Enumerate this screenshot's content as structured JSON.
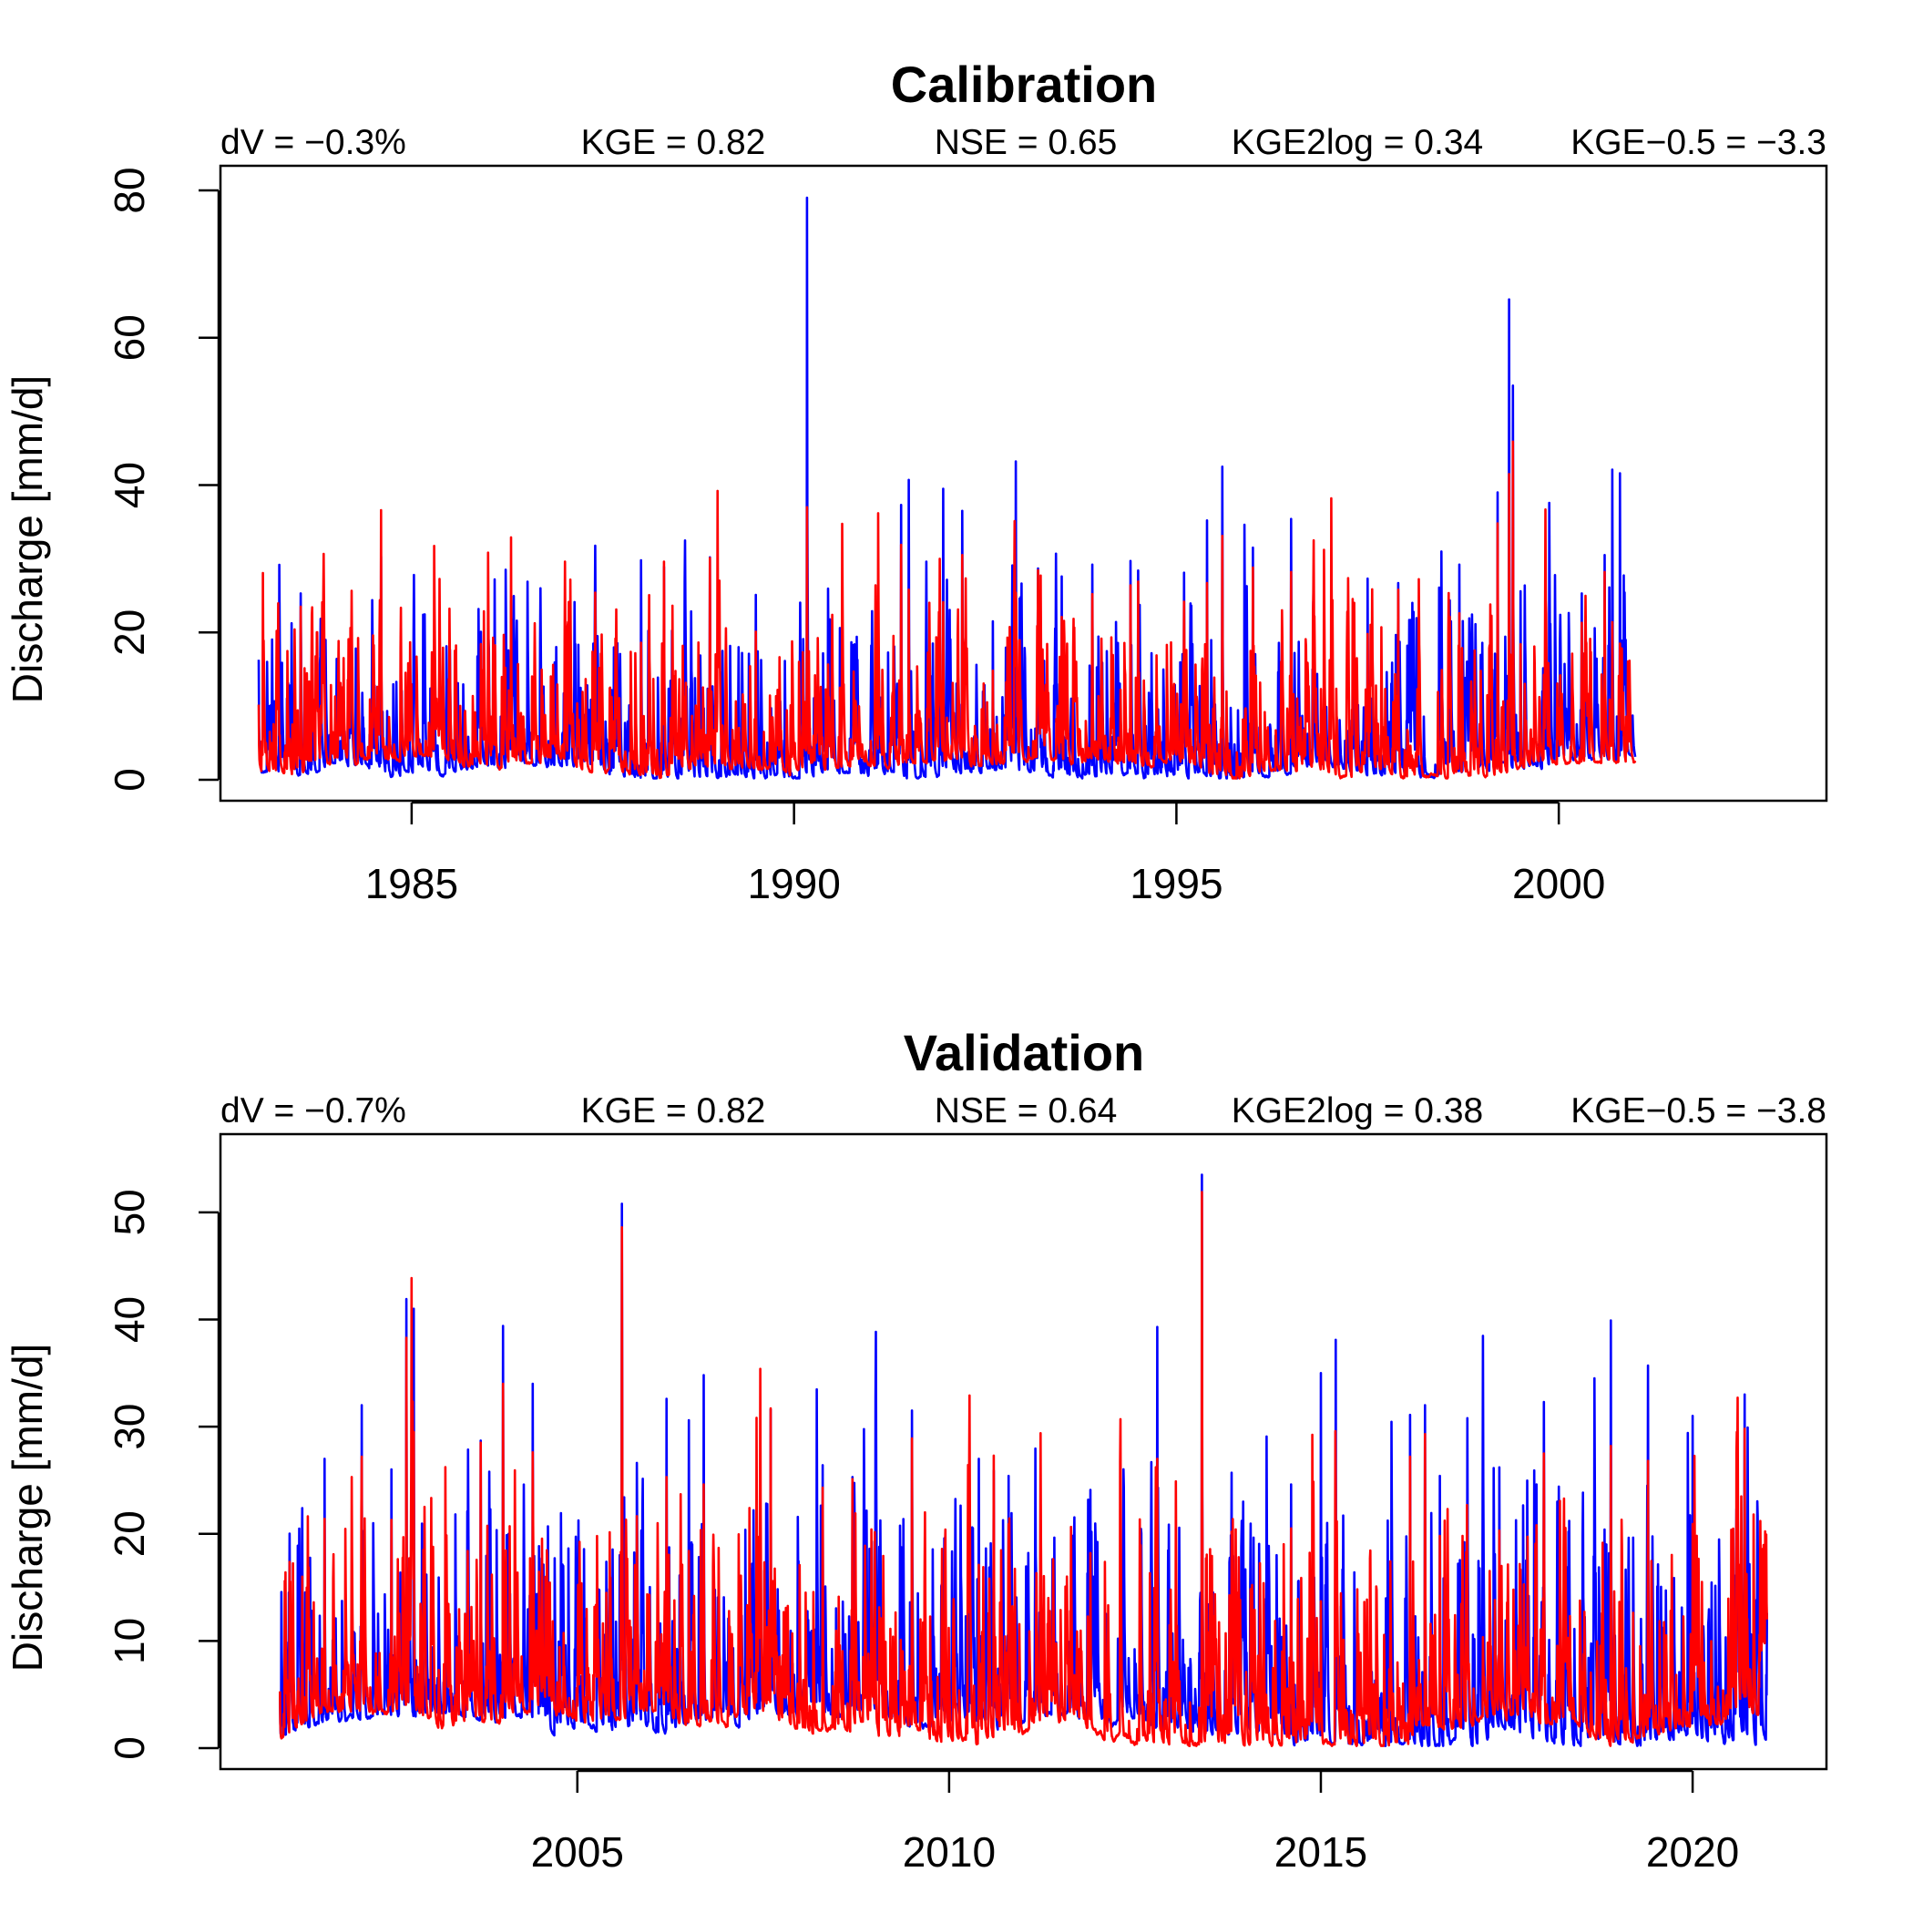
{
  "chart_data": [
    {
      "type": "line",
      "title": "Calibration",
      "metrics": [
        "dV = −0.3%",
        "KGE = 0.82",
        "NSE = 0.65",
        "KGE2log = 0.34",
        "KGE−0.5 = −3.3"
      ],
      "xlabel": "",
      "ylabel": "Discharge [mm/d]",
      "xlim": [
        1982.5,
        2003.5
      ],
      "ylim": [
        0,
        80
      ],
      "x_ticks": [
        1985,
        1990,
        1995,
        2000
      ],
      "y_ticks": [
        0,
        20,
        40,
        60,
        80
      ],
      "data_range": [
        1983.0,
        2001.0
      ],
      "series": [
        {
          "color": "#0000ff",
          "x": [
            1983.0,
            1983.55,
            1984.6,
            1986.3,
            1987.4,
            1988.0,
            1988.3,
            1988.9,
            1989.5,
            1990.17,
            1990.6,
            1991.4,
            1991.5,
            1991.95,
            1992.2,
            1992.6,
            1992.9,
            1993.5,
            1993.9,
            1994.4,
            1994.5,
            1995.1,
            1995.4,
            1995.6,
            1996.0,
            1996.5,
            1997.5,
            1997.9,
            1998.7,
            1999.2,
            1999.35,
            1999.4,
            1999.5,
            2000.3,
            2000.6,
            2000.7,
            2000.8,
            2001.0
          ],
          "peaks": [
            16.3,
            25.3,
            30.3,
            24.3,
            29.2,
            29.8,
            28.9,
            30.2,
            25.1,
            79.0,
            20.6,
            37.3,
            40.7,
            39.5,
            36.5,
            21.5,
            43.2,
            27.6,
            29.2,
            29.7,
            28.4,
            28.1,
            35.2,
            42.5,
            31.5,
            35.4,
            27.3,
            26.7,
            29.2,
            39.0,
            65.2,
            53.5,
            25.6,
            25.3,
            30.5,
            42.1,
            41.6,
            1.0
          ]
        },
        {
          "color": "#ff0000",
          "x": [
            1983.0,
            1983.55,
            1984.6,
            1986.3,
            1987.4,
            1988.0,
            1988.3,
            1988.9,
            1989.5,
            1990.17,
            1990.6,
            1991.4,
            1991.5,
            1991.95,
            1992.2,
            1992.6,
            1992.9,
            1993.5,
            1993.9,
            1994.4,
            1994.5,
            1995.1,
            1995.4,
            1995.6,
            1996.0,
            1996.5,
            1997.5,
            1997.9,
            1998.7,
            1999.2,
            1999.35,
            1999.4,
            1999.5,
            2000.3,
            2000.6,
            2000.7,
            2000.8,
            2001.0
          ],
          "peaks": [
            10.2,
            23.5,
            36.6,
            32.9,
            25.4,
            18.6,
            29.6,
            30.1,
            20.1,
            37.0,
            12.5,
            31.9,
            25.8,
            24.1,
            30.5,
            14.8,
            25.4,
            22.1,
            25.2,
            26.4,
            26.9,
            23.4,
            26.7,
            33.1,
            28.8,
            28.2,
            19.8,
            25.8,
            22.6,
            34.8,
            41.5,
            45.9,
            18.4,
            21.3,
            28.2,
            21.4,
            18.5,
            0.6
          ]
        }
      ]
    },
    {
      "type": "line",
      "title": "Validation",
      "metrics": [
        "dV = −0.7%",
        "KGE = 0.82",
        "NSE = 0.64",
        "KGE2log = 0.38",
        "KGE−0.5 = −3.8"
      ],
      "xlabel": "",
      "ylabel": "Discharge [mm/d]",
      "xlim": [
        2000.2,
        2021.8
      ],
      "ylim": [
        0,
        55
      ],
      "x_ticks": [
        2005,
        2010,
        2015,
        2020
      ],
      "y_ticks": [
        0,
        10,
        20,
        30,
        40,
        50
      ],
      "data_range": [
        2001.0,
        2021.0
      ],
      "series": [
        {
          "color": "#0000ff",
          "x": [
            2001.0,
            2001.3,
            2001.6,
            2002.1,
            2002.5,
            2002.7,
            2002.8,
            2003.7,
            2004.0,
            2004.4,
            2005.6,
            2006.2,
            2006.5,
            2006.7,
            2007.6,
            2008.3,
            2008.7,
            2009.5,
            2010.4,
            2010.6,
            2010.8,
            2011.9,
            2012.8,
            2013.4,
            2013.8,
            2014.6,
            2015.0,
            2015.2,
            2016.2,
            2016.4,
            2016.6,
            2017.4,
            2017.9,
            2018.0,
            2018.9,
            2019.4,
            2020.0,
            2020.7,
            2021.0
          ],
          "peaks": [
            5.0,
            22.4,
            27.0,
            32.0,
            26.0,
            41.9,
            41.0,
            28.7,
            39.4,
            34.0,
            50.8,
            32.6,
            30.6,
            34.8,
            31.6,
            26.4,
            25.3,
            31.5,
            27.0,
            25.9,
            25.4,
            24.1,
            39.3,
            53.5,
            25.7,
            24.6,
            35.0,
            38.1,
            31.1,
            32.0,
            25.4,
            26.2,
            24.6,
            32.3,
            39.9,
            35.7,
            31.0,
            33.0,
            12.6
          ]
        },
        {
          "color": "#ff0000",
          "x": [
            2001.0,
            2001.3,
            2001.6,
            2002.1,
            2002.5,
            2002.7,
            2002.8,
            2003.7,
            2004.0,
            2004.4,
            2005.6,
            2006.2,
            2006.5,
            2006.7,
            2007.6,
            2008.3,
            2008.7,
            2009.5,
            2010.4,
            2010.6,
            2010.8,
            2011.9,
            2012.8,
            2013.4,
            2013.8,
            2014.6,
            2015.0,
            2015.2,
            2016.2,
            2016.4,
            2016.6,
            2017.4,
            2017.9,
            2018.0,
            2018.9,
            2019.4,
            2020.0,
            2020.7,
            2021.0
          ],
          "peaks": [
            5.3,
            16.0,
            21.4,
            27.2,
            21.3,
            38.3,
            29.5,
            28.5,
            34.0,
            27.6,
            48.6,
            25.3,
            18.4,
            24.6,
            31.7,
            24.3,
            25.1,
            28.9,
            17.1,
            27.3,
            20.9,
            18.2,
            27.0,
            51.9,
            20.2,
            20.5,
            13.7,
            24.4,
            27.2,
            29.3,
            19.8,
            20.3,
            20.8,
            27.5,
            28.2,
            26.8,
            20.9,
            29.8,
            12.0
          ]
        }
      ]
    }
  ]
}
